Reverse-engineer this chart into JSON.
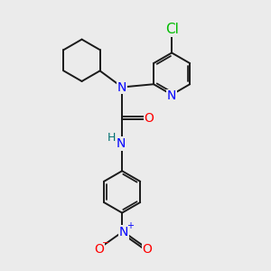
{
  "bg_color": "#ebebeb",
  "atom_colors": {
    "C": "#1a1a1a",
    "N": "#0000ff",
    "O": "#ff0000",
    "Cl": "#00bb00",
    "H": "#007070"
  },
  "bond_color": "#1a1a1a",
  "bond_width": 1.4,
  "font_size_atoms": 10,
  "font_size_small": 8
}
